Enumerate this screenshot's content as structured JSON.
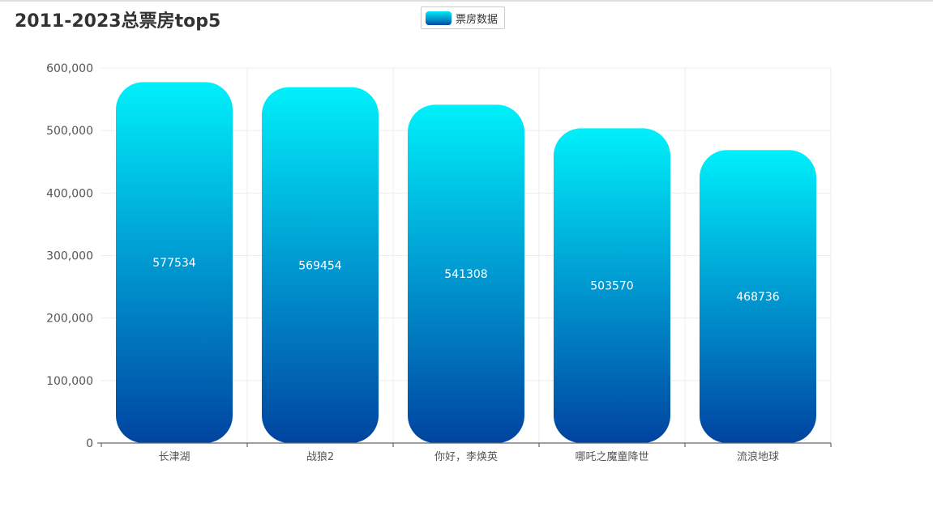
{
  "chart_data": {
    "type": "bar",
    "title": "2011-2023总票房top5",
    "categories": [
      "长津湖",
      "战狼2",
      "你好，李焕英",
      "哪吒之魔童降世",
      "流浪地球"
    ],
    "series": [
      {
        "name": "票房数据",
        "values": [
          577534,
          569454,
          541308,
          503570,
          468736
        ]
      }
    ],
    "ylim": [
      0,
      600000
    ],
    "yticks": [
      0,
      100000,
      200000,
      300000,
      400000,
      500000,
      600000
    ],
    "ytick_labels": [
      "0",
      "100,000",
      "200,000",
      "300,000",
      "400,000",
      "500,000",
      "600,000"
    ],
    "xlabel": "",
    "ylabel": "",
    "grid": true,
    "legend_position": "top-center",
    "colors": {
      "bar_top": "#00f0fa",
      "bar_mid": "#0090cc",
      "bar_bottom": "#0044a0",
      "grid": "#ececec",
      "axis": "#666666"
    }
  }
}
